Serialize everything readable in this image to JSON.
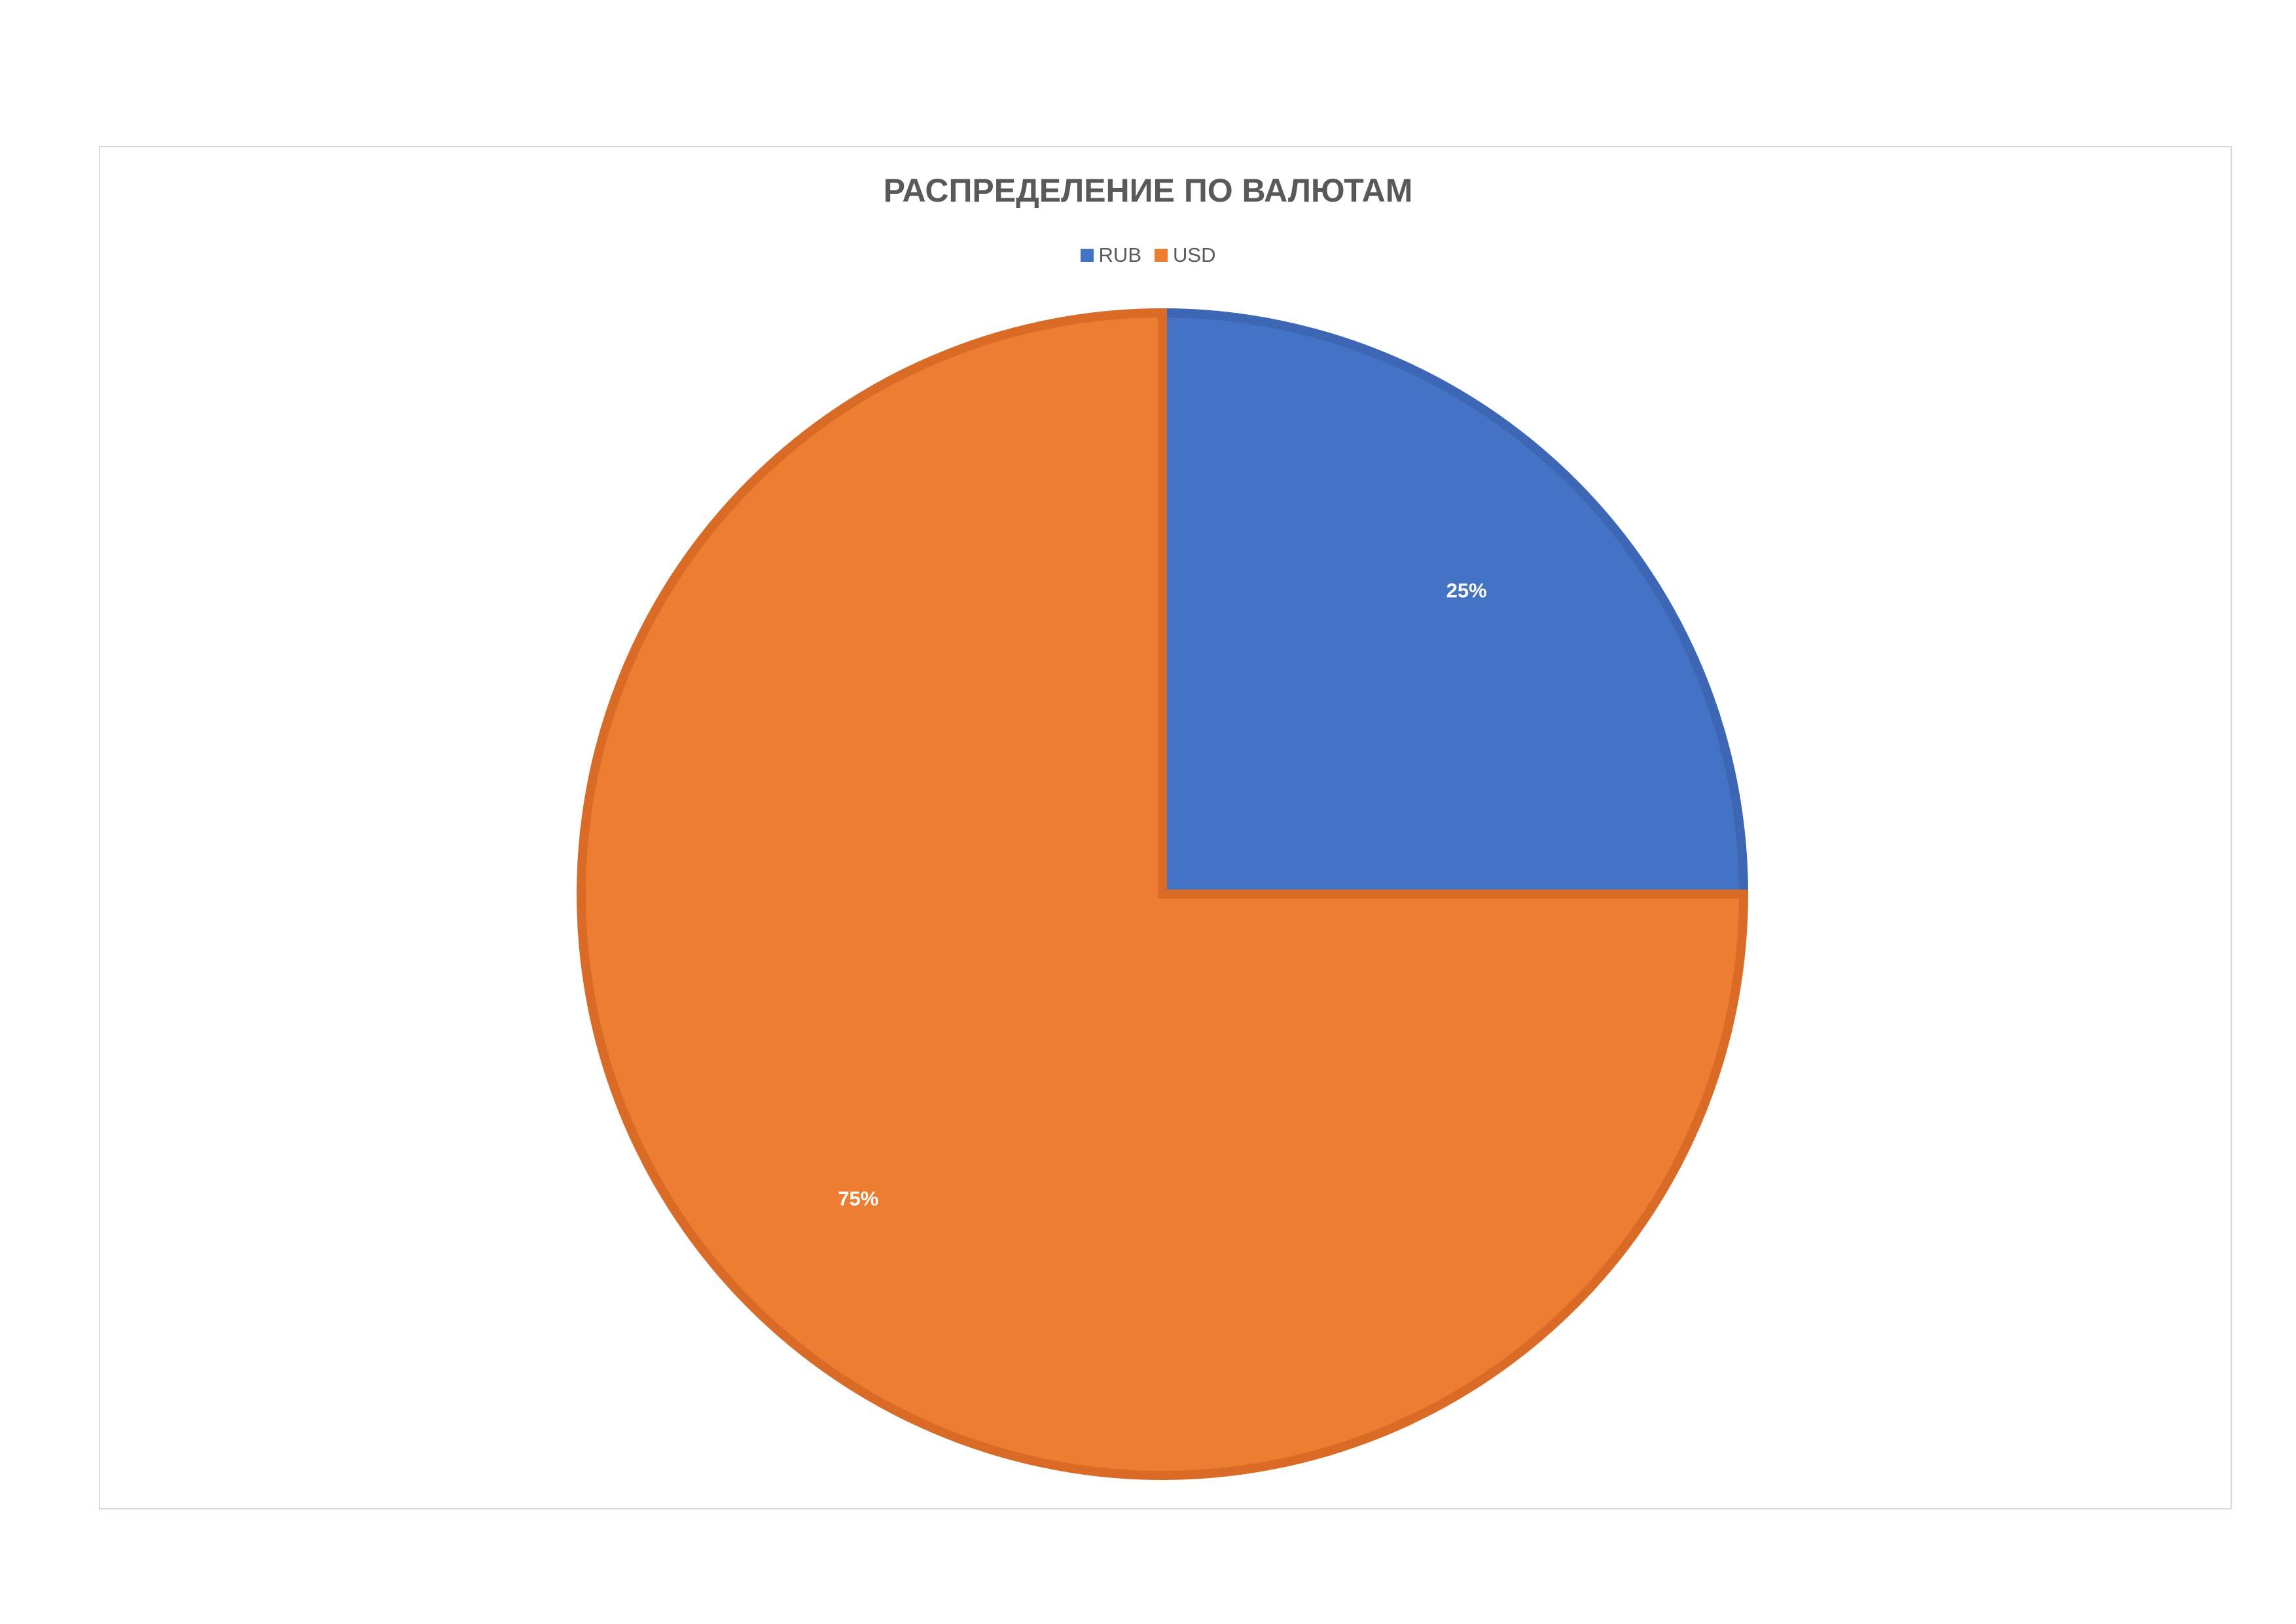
{
  "chart_data": {
    "type": "pie",
    "title": "РАСПРЕДЕЛЕНИЕ ПО ВАЛЮТАМ",
    "categories": [
      "RUB",
      "USD"
    ],
    "values": [
      25,
      75
    ],
    "data_labels": [
      "25%",
      "75%"
    ],
    "colors": [
      "#4472c4",
      "#ed7d31"
    ],
    "legend_position": "top"
  }
}
